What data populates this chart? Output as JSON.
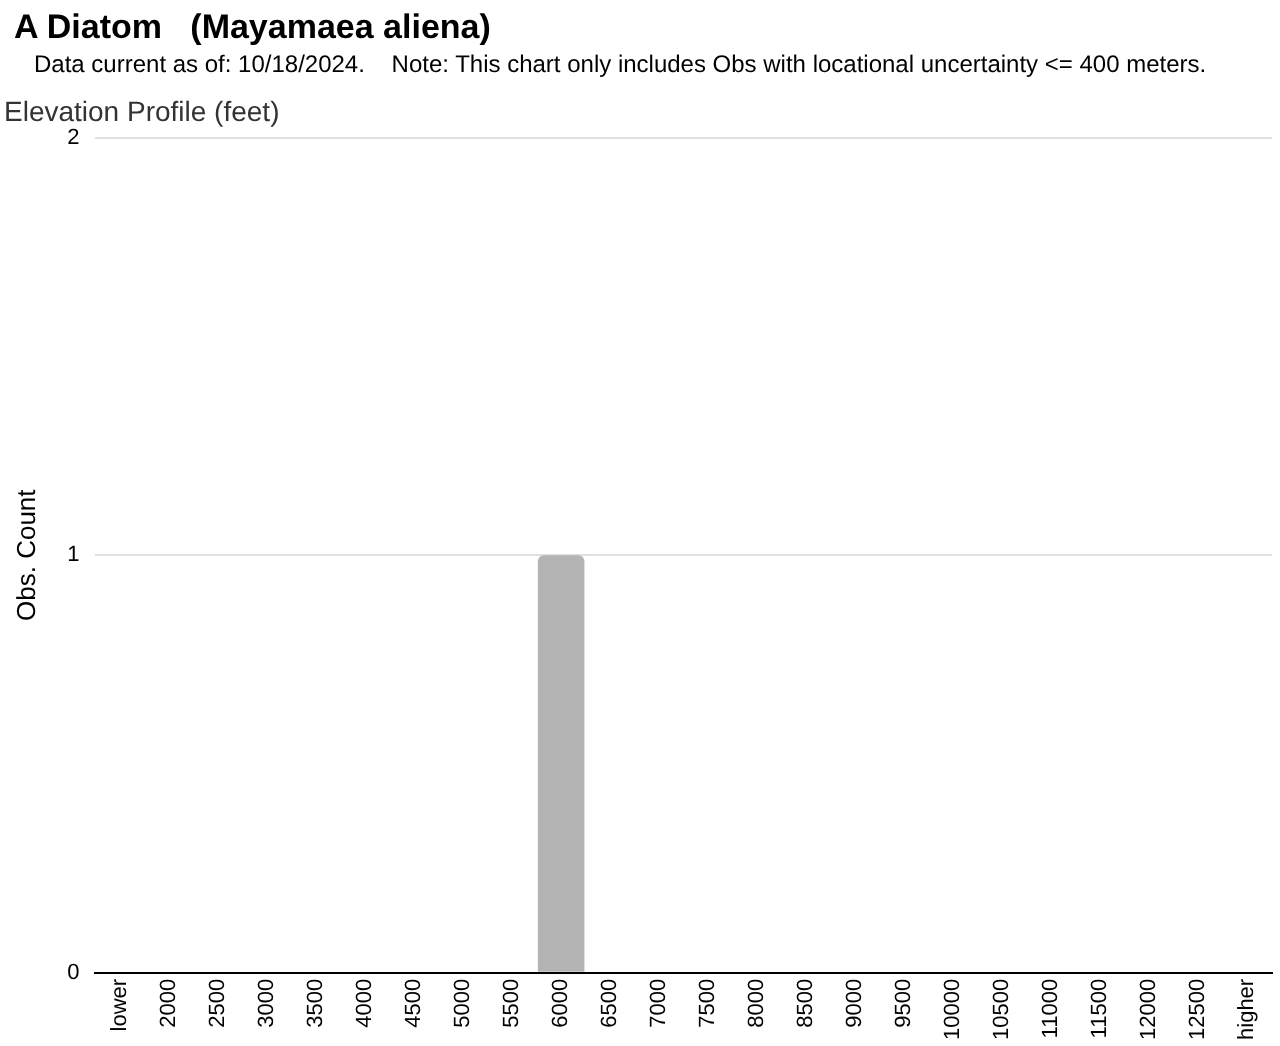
{
  "chart_data": {
    "type": "bar",
    "title": "A Diatom   (Mayamaea aliena)",
    "subtitle": "Data current as of: 10/18/2024.    Note: This chart only includes Obs with locational uncertainty <= 400 meters.",
    "annotations": [
      "Elevation Profile (feet)"
    ],
    "ylabel": "Obs. Count",
    "categories": [
      "lower",
      "2000",
      "2500",
      "3000",
      "3500",
      "4000",
      "4500",
      "5000",
      "5500",
      "6000",
      "6500",
      "7000",
      "7500",
      "8000",
      "8500",
      "9000",
      "9500",
      "10000",
      "10500",
      "11000",
      "11500",
      "12000",
      "12500",
      "higher"
    ],
    "values": [
      0,
      0,
      0,
      0,
      0,
      0,
      0,
      0,
      0,
      1,
      0,
      0,
      0,
      0,
      0,
      0,
      0,
      0,
      0,
      0,
      0,
      0,
      0,
      0
    ],
    "color": "#b4b4b4",
    "ylim": [
      0,
      2
    ],
    "yticks": [
      0,
      1,
      2
    ],
    "grid": "y",
    "legend": false
  }
}
